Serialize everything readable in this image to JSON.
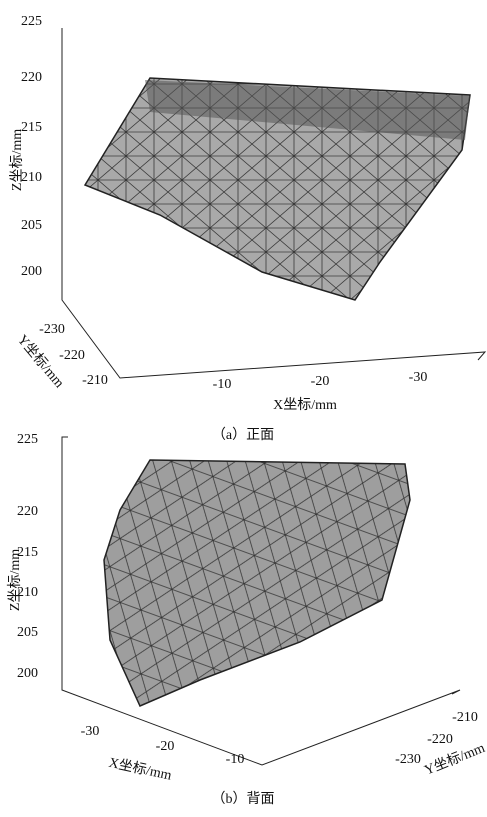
{
  "figures": [
    {
      "z_axis": {
        "label": "Z坐标/mm",
        "ticks": [
          225,
          220,
          215,
          210,
          205,
          200
        ]
      },
      "y_axis": {
        "label": "Y坐标/mm",
        "ticks": [
          -230,
          -220,
          -210
        ]
      },
      "x_axis": {
        "label": "X坐标/mm",
        "ticks": [
          -10,
          -20,
          -30
        ]
      },
      "caption": "（a）正面"
    },
    {
      "z_axis": {
        "label": "Z坐标/mm",
        "ticks": [
          225,
          220,
          215,
          210,
          205,
          200
        ]
      },
      "x_axis": {
        "label": "X坐标/mm",
        "ticks": [
          -30,
          -20,
          -10
        ]
      },
      "y_axis": {
        "label": "Y坐标/mm",
        "ticks": [
          -210,
          -220,
          -230
        ]
      },
      "caption": "（b）背面"
    }
  ]
}
